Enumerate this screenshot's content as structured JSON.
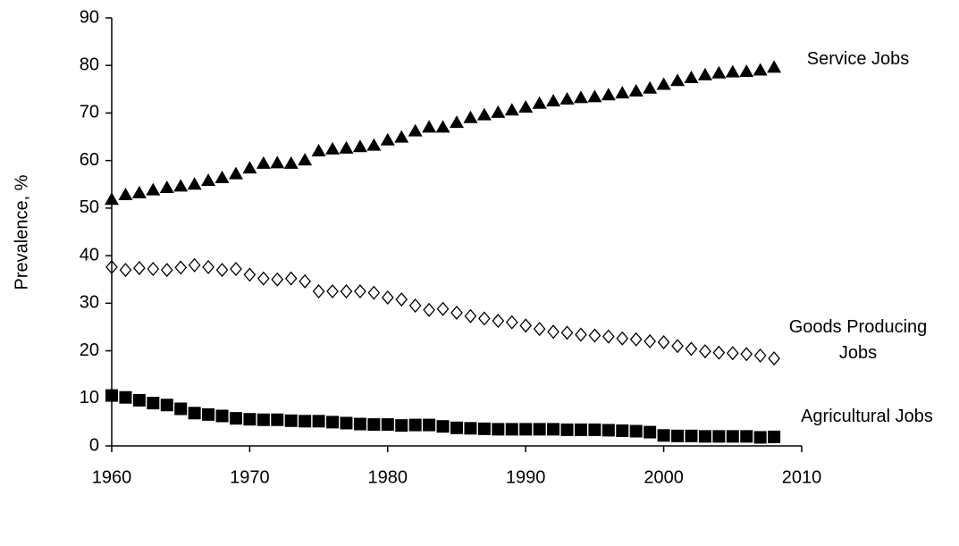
{
  "chart_data": {
    "type": "scatter",
    "y_label": "Prevalence, %",
    "x": [
      1960,
      1961,
      1962,
      1963,
      1964,
      1965,
      1966,
      1967,
      1968,
      1969,
      1970,
      1971,
      1972,
      1973,
      1974,
      1975,
      1976,
      1977,
      1978,
      1979,
      1980,
      1981,
      1982,
      1983,
      1984,
      1985,
      1986,
      1987,
      1988,
      1989,
      1990,
      1991,
      1992,
      1993,
      1994,
      1995,
      1996,
      1997,
      1998,
      1999,
      2000,
      2001,
      2002,
      2003,
      2004,
      2005,
      2006,
      2007,
      2008
    ],
    "series": [
      {
        "name": "Service Jobs",
        "color": "#000000",
        "marker": "triangle",
        "values": [
          51.8,
          52.8,
          53.2,
          53.8,
          54.3,
          54.6,
          55.0,
          55.8,
          56.4,
          57.2,
          58.4,
          59.4,
          59.5,
          59.4,
          60.1,
          62.0,
          62.4,
          62.6,
          62.9,
          63.2,
          64.3,
          64.9,
          66.2,
          67.0,
          67.0,
          68.0,
          69.0,
          69.6,
          70.1,
          70.6,
          71.2,
          72.0,
          72.5,
          72.9,
          73.2,
          73.4,
          73.8,
          74.2,
          74.6,
          75.2,
          76.0,
          76.8,
          77.4,
          78.0,
          78.4,
          78.6,
          78.7,
          79.0,
          79.6
        ]
      },
      {
        "name": "Goods Producing Jobs",
        "color": "#000000",
        "marker": "open-diamond",
        "values": [
          37.6,
          37.0,
          37.4,
          37.2,
          37.0,
          37.5,
          38.0,
          37.6,
          37.0,
          37.2,
          36.0,
          35.2,
          35.0,
          35.2,
          34.6,
          32.5,
          32.5,
          32.5,
          32.5,
          32.2,
          31.2,
          30.8,
          29.5,
          28.6,
          28.8,
          28.0,
          27.3,
          26.8,
          26.3,
          26.0,
          25.3,
          24.6,
          24.0,
          23.8,
          23.4,
          23.2,
          23.0,
          22.6,
          22.4,
          22.0,
          21.8,
          21.0,
          20.4,
          19.9,
          19.6,
          19.5,
          19.3,
          19.0,
          18.4
        ]
      },
      {
        "name": "Agricultural Jobs",
        "color": "#000000",
        "marker": "square",
        "values": [
          10.6,
          10.2,
          9.6,
          9.0,
          8.6,
          7.8,
          6.9,
          6.6,
          6.3,
          5.8,
          5.6,
          5.5,
          5.5,
          5.3,
          5.2,
          5.2,
          5.0,
          4.8,
          4.6,
          4.5,
          4.5,
          4.3,
          4.4,
          4.4,
          4.1,
          3.8,
          3.7,
          3.6,
          3.5,
          3.5,
          3.5,
          3.5,
          3.5,
          3.4,
          3.4,
          3.4,
          3.3,
          3.2,
          3.1,
          2.9,
          2.2,
          2.1,
          2.1,
          2.0,
          2.0,
          2.0,
          2.0,
          1.8,
          1.9
        ]
      }
    ],
    "xlim": [
      1960,
      2010
    ],
    "xticks": [
      1960,
      1970,
      1980,
      1990,
      2000,
      2010
    ],
    "ylim": [
      0,
      90
    ],
    "yticks": [
      0,
      10,
      20,
      30,
      40,
      50,
      60,
      70,
      80,
      90
    ]
  }
}
